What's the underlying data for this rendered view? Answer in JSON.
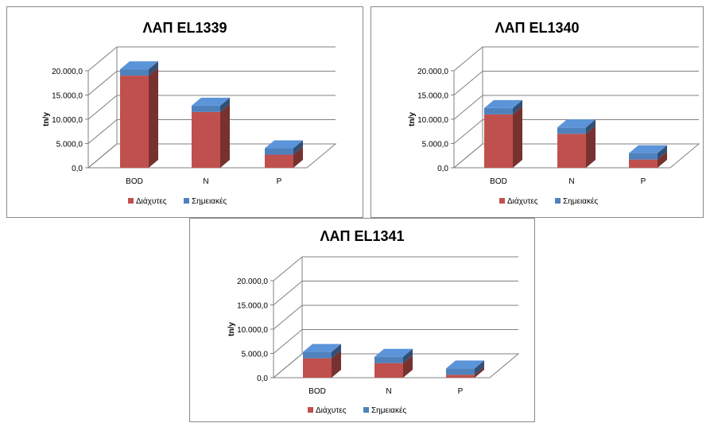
{
  "colors": {
    "diffuse": "#c0504d",
    "point": "#4f81bd",
    "grid": "#808080"
  },
  "chart_data": [
    {
      "type": "bar",
      "title": "ΛΑΠ EL1339",
      "ylabel": "tn/y",
      "categories": [
        "BOD",
        "N",
        "P"
      ],
      "ylim": [
        0,
        20000
      ],
      "yticks": [
        "0,0",
        "5.000,0",
        "10.000,0",
        "15.000,0",
        "20.000,0"
      ],
      "stacked": true,
      "series": [
        {
          "name": "Διάχυτες",
          "values": [
            19000,
            11500,
            2700
          ]
        },
        {
          "name": "Σημειακές",
          "values": [
            100,
            50,
            20
          ]
        }
      ]
    },
    {
      "type": "bar",
      "title": "ΛΑΠ EL1340",
      "ylabel": "tn/y",
      "categories": [
        "BOD",
        "N",
        "P"
      ],
      "ylim": [
        0,
        20000
      ],
      "yticks": [
        "0,0",
        "5.000,0",
        "10.000,0",
        "15.000,0",
        "20.000,0"
      ],
      "stacked": true,
      "series": [
        {
          "name": "Διάχυτες",
          "values": [
            11000,
            7000,
            1700
          ]
        },
        {
          "name": "Σημειακές",
          "values": [
            100,
            50,
            20
          ]
        }
      ]
    },
    {
      "type": "bar",
      "title": "ΛΑΠ EL1341",
      "ylabel": "tn/y",
      "categories": [
        "BOD",
        "N",
        "P"
      ],
      "ylim": [
        0,
        20000
      ],
      "yticks": [
        "0,0",
        "5.000,0",
        "10.000,0",
        "15.000,0",
        "20.000,0"
      ],
      "stacked": true,
      "series": [
        {
          "name": "Διάχυτες",
          "values": [
            4000,
            3000,
            600
          ]
        },
        {
          "name": "Σημειακές",
          "values": [
            100,
            50,
            20
          ]
        }
      ]
    }
  ]
}
